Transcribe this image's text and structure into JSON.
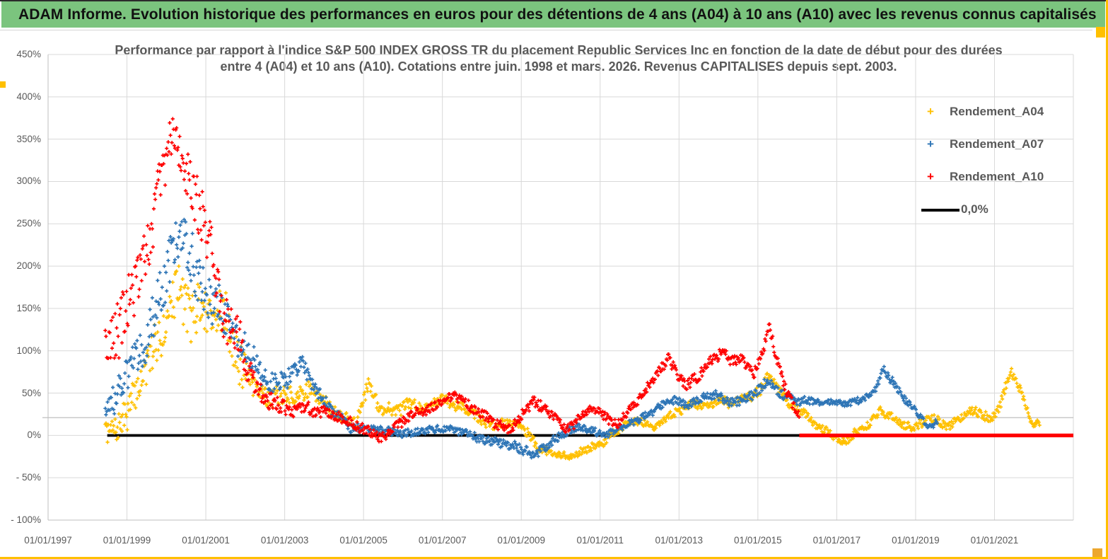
{
  "header": {
    "title": "ADAM Informe. Evolution historique des performances en euros pour des détentions de 4 ans (A04) à 10 ans (A10) avec les revenus connus capitalisés"
  },
  "chart": {
    "title_line1": "Performance par rapport à l'indice S&P 500 INDEX GROSS TR  du placement Republic Services Inc en fonction de la date de début pour des durées",
    "title_line2": "entre 4 (A04) et 10 ans (A10). Cotations entre juin. 1998 et mars. 2026. Revenus CAPITALISES depuis sept. 2003.",
    "legend": {
      "items": [
        {
          "label": "Rendement_A04",
          "color": "#FFC000",
          "marker": "+"
        },
        {
          "label": "Rendement_A07",
          "color": "#2E75B6",
          "marker": "+"
        },
        {
          "label": "Rendement_A10",
          "color": "#FF0000",
          "marker": "+"
        }
      ],
      "zero_label": "0,0%",
      "zero_color": "#000000"
    },
    "colors": {
      "grid": "#D9D9D9",
      "axis_line": "#BFBFBF",
      "text": "#595959",
      "header_green": "#7BC47E",
      "gold": "#FFC000"
    }
  },
  "chart_data": {
    "type": "scatter",
    "title": "Performance par rapport à l'indice S&P 500 INDEX GROSS TR du placement Republic Services Inc en fonction de la date de début pour des durées entre 4 (A04) et 10 ans (A10). Cotations entre juin. 1998 et mars. 2026. Revenus CAPITALISES depuis sept. 2003.",
    "y_axis": {
      "unit": "%",
      "min": -100,
      "max": 450,
      "major_unit": 50,
      "tick_labels": [
        "450%",
        "400%",
        "350%",
        "300%",
        "250%",
        "200%",
        "150%",
        "100%",
        "50%",
        "0%",
        "- 50%",
        "- 100%"
      ],
      "tick_values": [
        450,
        400,
        350,
        300,
        250,
        200,
        150,
        100,
        50,
        0,
        -50,
        -100
      ],
      "category_axis_crossing_value": 21
    },
    "x_axis": {
      "tick_labels": [
        "01/01/1997",
        "01/01/1999",
        "01/01/2001",
        "01/01/2003",
        "01/01/2005",
        "01/01/2007",
        "01/01/2009",
        "01/01/2011",
        "01/01/2013",
        "01/01/2015",
        "01/01/2017",
        "01/01/2019",
        "01/01/2021"
      ],
      "tick_years": [
        1997,
        1999,
        2001,
        2003,
        2005,
        2007,
        2009,
        2011,
        2013,
        2015,
        2017,
        2019,
        2021
      ],
      "year_min": 1997,
      "year_max": 2023,
      "gridline_step_years": 2
    },
    "grid": true,
    "legend_position": "right",
    "zero_series": {
      "name": "0,0%",
      "color": "#000000",
      "value": 0,
      "start_year": 1998.5,
      "end_year": 2023.0
    },
    "a10_flat_segment": {
      "note": "Rendement_A10 plotted flat at 0% after real data ends",
      "value": 0,
      "start_year": 2016.05,
      "end_year": 2023.0,
      "color": "#FF0000"
    },
    "series": [
      {
        "name": "Rendement_A04",
        "color": "#FFC000",
        "seed": 7,
        "start_year": 1998.45,
        "end_year": 2022.15,
        "trend": [
          [
            1998.45,
            5
          ],
          [
            1998.7,
            8
          ],
          [
            1999.0,
            30
          ],
          [
            1999.4,
            70
          ],
          [
            1999.8,
            110
          ],
          [
            2000.1,
            150
          ],
          [
            2000.35,
            185
          ],
          [
            2000.6,
            150
          ],
          [
            2000.9,
            140
          ],
          [
            2001.2,
            150
          ],
          [
            2001.5,
            135
          ],
          [
            2001.8,
            95
          ],
          [
            2002.1,
            70
          ],
          [
            2002.4,
            52
          ],
          [
            2002.8,
            45
          ],
          [
            2003.2,
            42
          ],
          [
            2003.6,
            55
          ],
          [
            2004.0,
            40
          ],
          [
            2004.4,
            22
          ],
          [
            2004.8,
            18
          ],
          [
            2005.12,
            62
          ],
          [
            2005.4,
            32
          ],
          [
            2005.8,
            30
          ],
          [
            2006.2,
            35
          ],
          [
            2006.6,
            32
          ],
          [
            2007.0,
            45
          ],
          [
            2007.4,
            38
          ],
          [
            2007.8,
            25
          ],
          [
            2008.2,
            12
          ],
          [
            2008.6,
            15
          ],
          [
            2008.9,
            18
          ],
          [
            2009.2,
            0
          ],
          [
            2009.5,
            -15
          ],
          [
            2009.9,
            -25
          ],
          [
            2010.2,
            -26
          ],
          [
            2010.5,
            -18
          ],
          [
            2010.8,
            -14
          ],
          [
            2011.1,
            -8
          ],
          [
            2011.45,
            5
          ],
          [
            2011.8,
            18
          ],
          [
            2012.1,
            15
          ],
          [
            2012.4,
            10
          ],
          [
            2012.7,
            22
          ],
          [
            2013.0,
            30
          ],
          [
            2013.3,
            38
          ],
          [
            2013.7,
            35
          ],
          [
            2014.0,
            42
          ],
          [
            2014.4,
            38
          ],
          [
            2014.8,
            48
          ],
          [
            2015.05,
            55
          ],
          [
            2015.3,
            75
          ],
          [
            2015.6,
            48
          ],
          [
            2015.9,
            35
          ],
          [
            2016.2,
            22
          ],
          [
            2016.5,
            12
          ],
          [
            2016.9,
            0
          ],
          [
            2017.15,
            -8
          ],
          [
            2017.5,
            2
          ],
          [
            2017.8,
            12
          ],
          [
            2018.1,
            28
          ],
          [
            2018.35,
            25
          ],
          [
            2018.6,
            15
          ],
          [
            2018.9,
            8
          ],
          [
            2019.2,
            15
          ],
          [
            2019.5,
            20
          ],
          [
            2019.8,
            10
          ],
          [
            2020.1,
            20
          ],
          [
            2020.35,
            30
          ],
          [
            2020.6,
            28
          ],
          [
            2020.9,
            20
          ],
          [
            2021.1,
            32
          ],
          [
            2021.42,
            75
          ],
          [
            2021.6,
            60
          ],
          [
            2021.85,
            25
          ],
          [
            2022.0,
            10
          ],
          [
            2022.15,
            15
          ]
        ],
        "spread": [
          [
            1998.45,
            14
          ],
          [
            1999.0,
            22
          ],
          [
            1999.8,
            30
          ],
          [
            2000.4,
            38
          ],
          [
            2001.2,
            40
          ],
          [
            2001.9,
            30
          ],
          [
            2002.6,
            14
          ],
          [
            2003.5,
            12
          ],
          [
            2004.5,
            9
          ],
          [
            2005.2,
            11
          ],
          [
            2006.0,
            8
          ],
          [
            2008.0,
            7
          ],
          [
            2010.0,
            6
          ],
          [
            2012.0,
            6
          ],
          [
            2014.0,
            6
          ],
          [
            2015.3,
            8
          ],
          [
            2016.0,
            6
          ],
          [
            2018.0,
            6
          ],
          [
            2020.0,
            6
          ],
          [
            2021.4,
            7
          ],
          [
            2022.1,
            5
          ]
        ]
      },
      {
        "name": "Rendement_A07",
        "color": "#2E75B6",
        "seed": 13,
        "start_year": 1998.45,
        "end_year": 2019.55,
        "trend": [
          [
            1998.45,
            35
          ],
          [
            1998.8,
            50
          ],
          [
            1999.2,
            85
          ],
          [
            1999.6,
            125
          ],
          [
            2000.0,
            190
          ],
          [
            2000.3,
            240
          ],
          [
            2000.6,
            205
          ],
          [
            2000.9,
            175
          ],
          [
            2001.2,
            155
          ],
          [
            2001.5,
            140
          ],
          [
            2001.8,
            115
          ],
          [
            2002.1,
            90
          ],
          [
            2002.45,
            68
          ],
          [
            2002.8,
            65
          ],
          [
            2003.1,
            70
          ],
          [
            2003.45,
            85
          ],
          [
            2003.7,
            60
          ],
          [
            2004.0,
            42
          ],
          [
            2004.35,
            25
          ],
          [
            2004.7,
            10
          ],
          [
            2005.1,
            6
          ],
          [
            2005.5,
            4
          ],
          [
            2005.9,
            2
          ],
          [
            2006.3,
            4
          ],
          [
            2006.7,
            6
          ],
          [
            2007.1,
            7
          ],
          [
            2007.5,
            2
          ],
          [
            2007.9,
            -2
          ],
          [
            2008.3,
            -6
          ],
          [
            2008.7,
            -10
          ],
          [
            2009.0,
            -18
          ],
          [
            2009.3,
            -24
          ],
          [
            2009.6,
            -15
          ],
          [
            2009.9,
            0
          ],
          [
            2010.2,
            8
          ],
          [
            2010.5,
            12
          ],
          [
            2010.8,
            6
          ],
          [
            2011.1,
            0
          ],
          [
            2011.4,
            6
          ],
          [
            2011.7,
            14
          ],
          [
            2012.0,
            20
          ],
          [
            2012.3,
            26
          ],
          [
            2012.6,
            35
          ],
          [
            2012.9,
            40
          ],
          [
            2013.2,
            34
          ],
          [
            2013.5,
            42
          ],
          [
            2013.8,
            46
          ],
          [
            2014.1,
            44
          ],
          [
            2014.4,
            40
          ],
          [
            2014.7,
            46
          ],
          [
            2015.0,
            52
          ],
          [
            2015.25,
            68
          ],
          [
            2015.5,
            52
          ],
          [
            2015.8,
            44
          ],
          [
            2016.1,
            40
          ],
          [
            2016.5,
            37
          ],
          [
            2016.9,
            40
          ],
          [
            2017.3,
            37
          ],
          [
            2017.7,
            42
          ],
          [
            2018.0,
            55
          ],
          [
            2018.2,
            78
          ],
          [
            2018.45,
            62
          ],
          [
            2018.7,
            45
          ],
          [
            2019.0,
            28
          ],
          [
            2019.3,
            10
          ],
          [
            2019.45,
            12
          ],
          [
            2019.55,
            18
          ]
        ],
        "spread": [
          [
            1998.45,
            20
          ],
          [
            1999.2,
            28
          ],
          [
            2000.2,
            38
          ],
          [
            2001.0,
            36
          ],
          [
            2001.8,
            28
          ],
          [
            2002.4,
            16
          ],
          [
            2003.3,
            12
          ],
          [
            2004.2,
            8
          ],
          [
            2005.0,
            6
          ],
          [
            2007.0,
            5
          ],
          [
            2009.2,
            7
          ],
          [
            2011.0,
            5
          ],
          [
            2013.0,
            5
          ],
          [
            2015.2,
            8
          ],
          [
            2017.0,
            4
          ],
          [
            2018.2,
            6
          ],
          [
            2019.5,
            5
          ]
        ]
      },
      {
        "name": "Rendement_A10",
        "color": "#FF0000",
        "seed": 29,
        "start_year": 1998.45,
        "end_year": 2016.05,
        "trend": [
          [
            1998.45,
            100
          ],
          [
            1998.8,
            125
          ],
          [
            1999.1,
            160
          ],
          [
            1999.45,
            215
          ],
          [
            1999.75,
            280
          ],
          [
            2000.0,
            320
          ],
          [
            2000.2,
            355
          ],
          [
            2000.45,
            320
          ],
          [
            2000.7,
            280
          ],
          [
            2001.0,
            235
          ],
          [
            2001.3,
            185
          ],
          [
            2001.6,
            140
          ],
          [
            2001.9,
            105
          ],
          [
            2002.2,
            60
          ],
          [
            2002.5,
            42
          ],
          [
            2002.8,
            35
          ],
          [
            2003.1,
            30
          ],
          [
            2003.5,
            32
          ],
          [
            2003.9,
            28
          ],
          [
            2004.3,
            25
          ],
          [
            2004.7,
            15
          ],
          [
            2005.1,
            5
          ],
          [
            2005.45,
            -2
          ],
          [
            2005.8,
            12
          ],
          [
            2006.2,
            22
          ],
          [
            2006.6,
            30
          ],
          [
            2007.0,
            42
          ],
          [
            2007.3,
            48
          ],
          [
            2007.7,
            35
          ],
          [
            2008.1,
            25
          ],
          [
            2008.45,
            15
          ],
          [
            2008.75,
            8
          ],
          [
            2009.0,
            25
          ],
          [
            2009.3,
            40
          ],
          [
            2009.6,
            30
          ],
          [
            2009.9,
            20
          ],
          [
            2010.15,
            8
          ],
          [
            2010.45,
            18
          ],
          [
            2010.7,
            30
          ],
          [
            2010.95,
            28
          ],
          [
            2011.2,
            18
          ],
          [
            2011.45,
            14
          ],
          [
            2011.7,
            28
          ],
          [
            2012.0,
            45
          ],
          [
            2012.3,
            62
          ],
          [
            2012.55,
            78
          ],
          [
            2012.75,
            88
          ],
          [
            2013.0,
            68
          ],
          [
            2013.2,
            62
          ],
          [
            2013.5,
            72
          ],
          [
            2013.8,
            88
          ],
          [
            2014.05,
            98
          ],
          [
            2014.3,
            92
          ],
          [
            2014.6,
            88
          ],
          [
            2014.9,
            75
          ],
          [
            2015.1,
            95
          ],
          [
            2015.27,
            132
          ],
          [
            2015.45,
            95
          ],
          [
            2015.65,
            62
          ],
          [
            2015.85,
            38
          ],
          [
            2016.05,
            25
          ]
        ],
        "spread": [
          [
            1998.45,
            42
          ],
          [
            1999.3,
            45
          ],
          [
            2000.2,
            36
          ],
          [
            2000.9,
            38
          ],
          [
            2001.6,
            33
          ],
          [
            2002.3,
            15
          ],
          [
            2003.0,
            10
          ],
          [
            2004.0,
            8
          ],
          [
            2005.0,
            7
          ],
          [
            2006.0,
            7
          ],
          [
            2008.0,
            7
          ],
          [
            2009.3,
            8
          ],
          [
            2010.0,
            6
          ],
          [
            2011.0,
            6
          ],
          [
            2012.5,
            8
          ],
          [
            2013.5,
            8
          ],
          [
            2014.5,
            8
          ],
          [
            2015.25,
            9
          ],
          [
            2016.05,
            7
          ]
        ]
      }
    ]
  }
}
